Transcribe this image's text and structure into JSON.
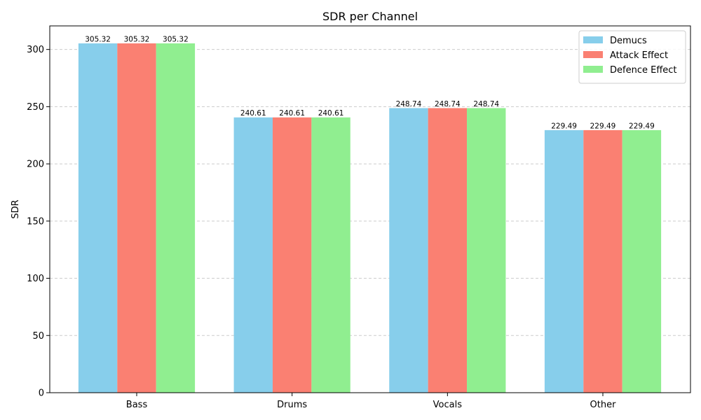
{
  "chart_data": {
    "type": "bar",
    "title": "SDR per Channel",
    "xlabel": "",
    "ylabel": "SDR",
    "categories": [
      "Bass",
      "Drums",
      "Vocals",
      "Other"
    ],
    "series": [
      {
        "name": "Demucs",
        "values": [
          305.32,
          240.61,
          248.74,
          229.49
        ],
        "color": "#87ceeb"
      },
      {
        "name": "Attack Effect",
        "values": [
          305.32,
          240.61,
          248.74,
          229.49
        ],
        "color": "#fa8072"
      },
      {
        "name": "Defence Effect",
        "values": [
          305.32,
          240.61,
          248.74,
          229.49
        ],
        "color": "#90ee90"
      }
    ],
    "ylim": [
      0,
      320.59
    ],
    "yticks": [
      0,
      50,
      100,
      150,
      200,
      250,
      300
    ],
    "grid": "y-dashed",
    "legend": "top-right"
  }
}
